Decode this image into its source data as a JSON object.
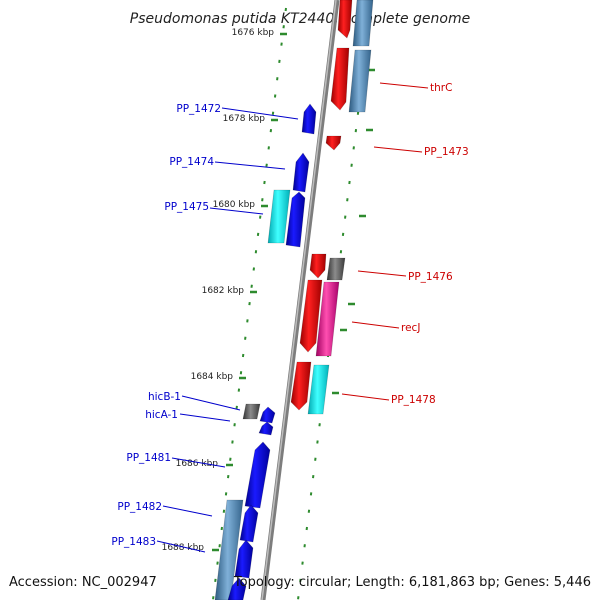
{
  "title": "Pseudomonas putida KT2440, complete genome",
  "footer": {
    "accession": "Accession: NC_002947",
    "topology": "Topology: circular; Length: 6,181,863 bp; Genes: 5,446"
  },
  "colors": {
    "backbone": "#8a8a8a",
    "tick": "#2e8b2e",
    "forward_gene": "#0000ee",
    "reverse_gene": "#ee0000",
    "forward_label": "#0000cc",
    "reverse_label": "#cc0000",
    "cyan_feature": "#00e5ee",
    "steel_feature": "#4682b4",
    "magenta_feature": "#ee1493",
    "gray_feature": "#666666"
  },
  "scale_labels": [
    "1676 kbp",
    "1678 kbp",
    "1680 kbp",
    "1682 kbp",
    "1684 kbp",
    "1686 kbp",
    "1688 kbp"
  ],
  "forward_labels": [
    "PP_1472",
    "PP_1474",
    "PP_1475",
    "hicB-1",
    "hicA-1",
    "PP_1481",
    "PP_1482",
    "PP_1483"
  ],
  "reverse_labels": [
    "thrC",
    "PP_1473",
    "PP_1476",
    "recJ",
    "PP_1478"
  ]
}
